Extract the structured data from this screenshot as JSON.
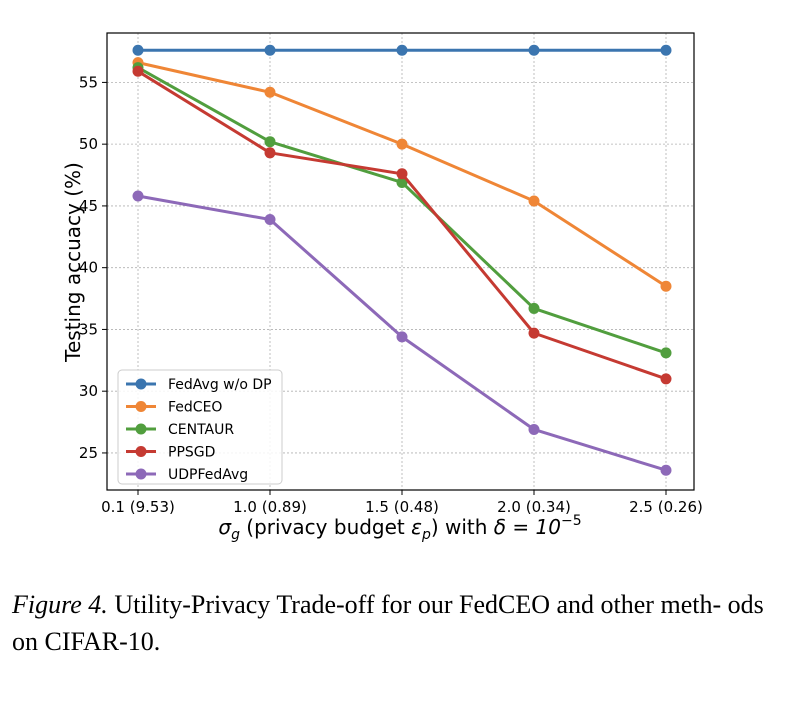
{
  "chart_data": {
    "type": "line",
    "x_categories": [
      "0.1 (9.53)",
      "1.0 (0.89)",
      "1.5 (0.48)",
      "2.0 (0.34)",
      "2.5 (0.26)"
    ],
    "ylabel": "Testing accuacy (%)",
    "xlabel": {
      "sigma": "σ",
      "sigma_sub": "g",
      "middle": " (privacy budget ",
      "eps": "ε",
      "eps_sub": "p",
      "after": ") with ",
      "delta": "δ = 10",
      "delta_sup": "−5"
    },
    "ylim": [
      22,
      59
    ],
    "yticks": [
      25,
      30,
      35,
      40,
      45,
      50,
      55
    ],
    "grid": true,
    "legend_position": "lower-left",
    "series": [
      {
        "name": "FedAvg w/o DP",
        "color": "#3b75af",
        "values": [
          57.6,
          57.6,
          57.6,
          57.6,
          57.6
        ]
      },
      {
        "name": "FedCEO",
        "color": "#ef8636",
        "values": [
          56.6,
          54.2,
          50.0,
          45.4,
          38.5
        ]
      },
      {
        "name": "CENTAUR",
        "color": "#519e3e",
        "values": [
          56.2,
          50.2,
          46.9,
          36.7,
          33.1
        ]
      },
      {
        "name": "PPSGD",
        "color": "#c53a32",
        "values": [
          55.9,
          49.3,
          47.6,
          34.7,
          31.0
        ]
      },
      {
        "name": "UDPFedAvg",
        "color": "#8d69b8",
        "values": [
          45.8,
          43.9,
          34.4,
          26.9,
          23.6
        ]
      }
    ]
  },
  "caption": {
    "figure_label": "Figure 4.",
    "text": " Utility-Privacy Trade-off for our FedCEO and other meth- ods on CIFAR-10."
  }
}
